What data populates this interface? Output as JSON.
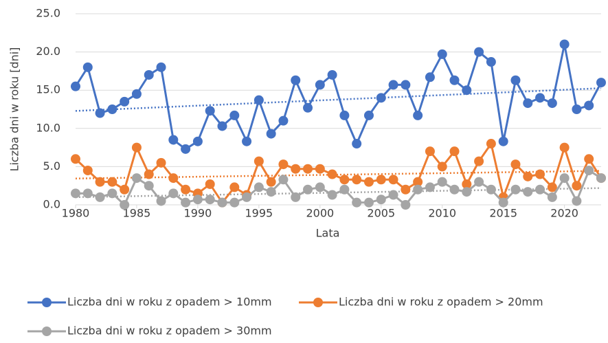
{
  "chart_data": {
    "type": "line",
    "xlabel": "Lata",
    "ylabel": "Liczba dni w roku [dni]",
    "x": [
      1980,
      1981,
      1982,
      1983,
      1984,
      1985,
      1986,
      1987,
      1988,
      1989,
      1990,
      1991,
      1992,
      1993,
      1994,
      1995,
      1996,
      1997,
      1998,
      1999,
      2000,
      2001,
      2002,
      2003,
      2004,
      2005,
      2006,
      2007,
      2008,
      2009,
      2010,
      2011,
      2012,
      2013,
      2014,
      2015,
      2016,
      2017,
      2018,
      2019,
      2020,
      2021,
      2022,
      2023
    ],
    "series": [
      {
        "name": "Liczba dni w roku z opadem > 10mm",
        "color": "#4472c4",
        "values": [
          15.5,
          18,
          12,
          12.5,
          13.5,
          14.5,
          17,
          18,
          8.5,
          7.3,
          8.3,
          12.3,
          10.3,
          11.7,
          8.3,
          13.7,
          9.3,
          11,
          16.3,
          12.7,
          15.7,
          17,
          11.7,
          8,
          11.7,
          14,
          15.7,
          15.7,
          11.7,
          16.7,
          19.7,
          16.3,
          15,
          20,
          18.7,
          8.3,
          16.3,
          13.3,
          14,
          13.3,
          21,
          12.5,
          13,
          16
        ]
      },
      {
        "name": "Liczba dni w roku z opadem > 20mm",
        "color": "#ed7d31",
        "values": [
          6,
          4.5,
          3,
          3,
          2,
          7.5,
          4,
          5.5,
          3.5,
          2,
          1.5,
          2.7,
          0.3,
          2.3,
          1.3,
          5.7,
          3,
          5.3,
          4.7,
          4.7,
          4.7,
          4,
          3.3,
          3.3,
          3,
          3.3,
          3.3,
          2,
          3,
          7,
          5,
          7,
          2.7,
          5.7,
          8,
          1,
          5.3,
          3.7,
          4,
          2.3,
          7.5,
          2.5,
          6,
          3.5
        ]
      },
      {
        "name": "Liczba dni w roku z opadem > 30mm",
        "color": "#a5a5a5",
        "values": [
          1.5,
          1.5,
          1,
          1.5,
          0,
          3.5,
          2.5,
          0.5,
          1.5,
          0.3,
          0.7,
          0.7,
          0.3,
          0.3,
          1,
          2.3,
          1.7,
          3.3,
          1,
          2,
          2.3,
          1.3,
          2,
          0.3,
          0.3,
          0.7,
          1.3,
          0,
          2,
          2.3,
          3,
          2,
          1.7,
          3,
          2,
          0.3,
          2,
          1.7,
          2,
          1,
          3.5,
          0.5,
          4.5,
          3.5
        ]
      }
    ],
    "xlim": [
      1980,
      2023
    ],
    "xticks": [
      1980,
      1985,
      1990,
      1995,
      2000,
      2005,
      2010,
      2015,
      2020
    ],
    "ylim": [
      0,
      25
    ],
    "yticks": [
      {
        "value": 0,
        "label": "0.0"
      },
      {
        "value": 5,
        "label": "5.0"
      },
      {
        "value": 10,
        "label": "10.0"
      },
      {
        "value": 15,
        "label": "15.0"
      },
      {
        "value": 20,
        "label": "20.0"
      },
      {
        "value": 25,
        "label": "25.0"
      }
    ],
    "grid": true,
    "trendline": "linear",
    "legend": "bottom"
  }
}
